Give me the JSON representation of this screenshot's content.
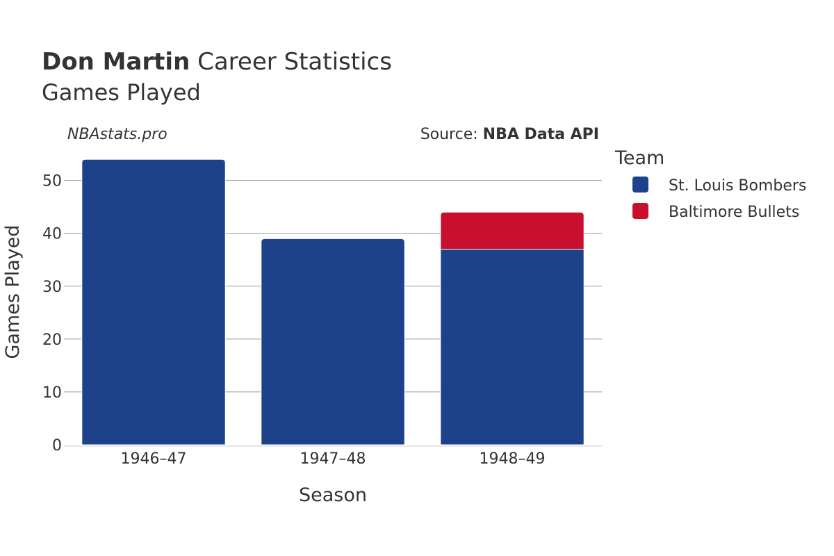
{
  "title": {
    "name": "Don Martin",
    "suffix": " Career Statistics",
    "subtitle": "Games Played"
  },
  "watermark": "NBAstats.pro",
  "source": {
    "prefix": "Source: ",
    "name": "NBA Data API"
  },
  "chart_data": {
    "type": "bar",
    "stacked": true,
    "categories": [
      "1946–47",
      "1947–48",
      "1948–49"
    ],
    "series": [
      {
        "name": "St. Louis Bombers",
        "color": "#1d428a",
        "values": [
          54,
          39,
          37
        ]
      },
      {
        "name": "Baltimore Bullets",
        "color": "#c8102e",
        "values": [
          0,
          0,
          7
        ]
      }
    ],
    "xlabel": "Season",
    "ylabel": "Games Played",
    "ylim": [
      0,
      56
    ],
    "yticks": [
      0,
      10,
      20,
      30,
      40,
      50
    ],
    "grid": true,
    "legend_title": "Team",
    "legend_position": "right"
  }
}
